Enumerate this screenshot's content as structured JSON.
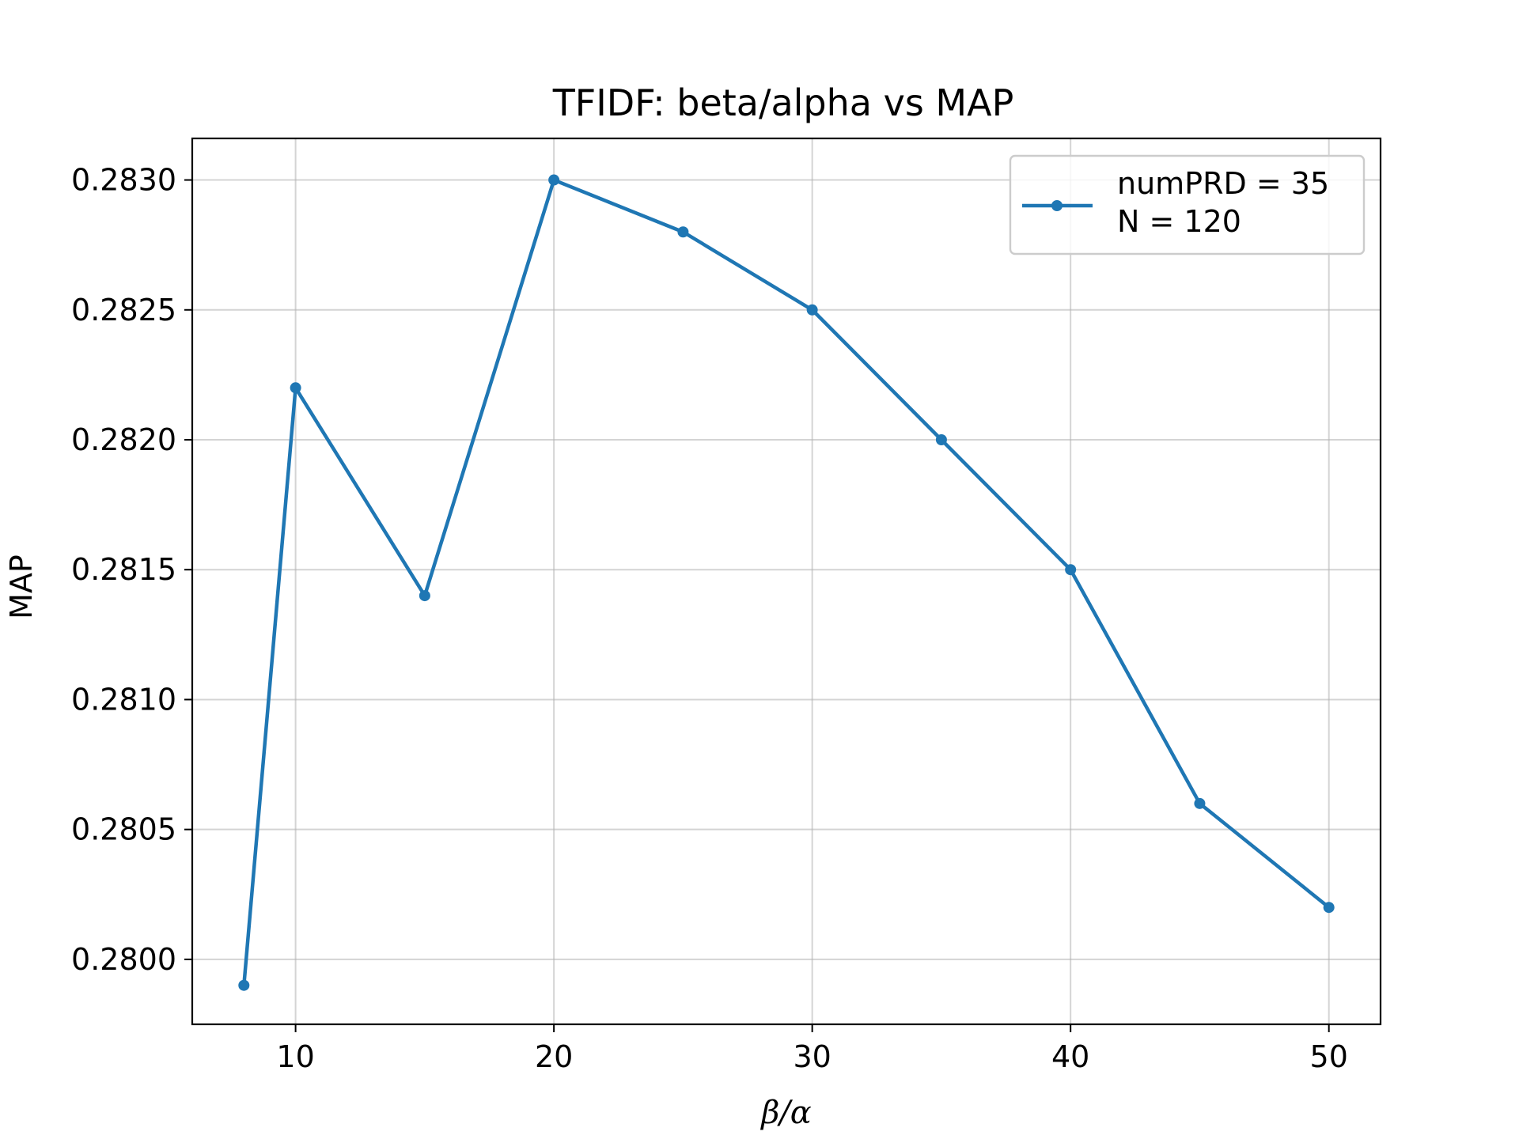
{
  "chart_data": {
    "type": "line",
    "title": "TFIDF: beta/alpha vs MAP",
    "xlabel": "β/α",
    "ylabel": "MAP",
    "xlim": [
      6,
      52
    ],
    "ylim": [
      0.27975,
      0.28316
    ],
    "xticks": [
      10,
      20,
      30,
      40,
      50
    ],
    "yticks": [
      0.28,
      0.2805,
      0.281,
      0.2815,
      0.282,
      0.2825,
      0.283
    ],
    "ytick_labels": [
      "0.2800",
      "0.2805",
      "0.2810",
      "0.2815",
      "0.2820",
      "0.2825",
      "0.2830"
    ],
    "grid": true,
    "legend_position": "top-right",
    "color": "#1f77b4",
    "series": [
      {
        "name": "numPRD = 35\nN = 120",
        "legend_lines": [
          "numPRD = 35",
          "N = 120"
        ],
        "x": [
          8,
          10,
          15,
          20,
          25,
          30,
          35,
          40,
          45,
          50
        ],
        "y": [
          0.2799,
          0.2822,
          0.2814,
          0.283,
          0.2828,
          0.2825,
          0.282,
          0.2815,
          0.2806,
          0.2802
        ]
      }
    ]
  }
}
